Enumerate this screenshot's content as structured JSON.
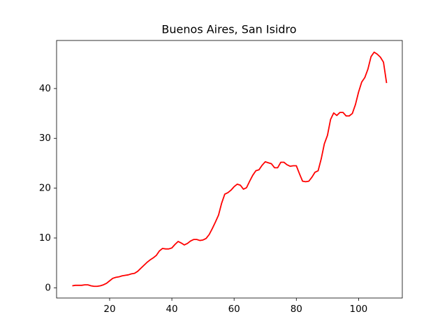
{
  "chart_data": {
    "type": "line",
    "title": "Buenos Aires, San Isidro",
    "x": [
      8,
      9,
      10,
      11,
      12,
      13,
      14,
      15,
      16,
      17,
      18,
      19,
      20,
      21,
      22,
      23,
      24,
      25,
      26,
      27,
      28,
      29,
      30,
      31,
      32,
      33,
      34,
      35,
      36,
      37,
      38,
      39,
      40,
      41,
      42,
      43,
      44,
      45,
      46,
      47,
      48,
      49,
      50,
      51,
      52,
      53,
      54,
      55,
      56,
      57,
      58,
      59,
      60,
      61,
      62,
      63,
      64,
      65,
      66,
      67,
      68,
      69,
      70,
      71,
      72,
      73,
      74,
      75,
      76,
      77,
      78,
      79,
      80,
      81,
      82,
      83,
      84,
      85,
      86,
      87,
      88,
      89,
      90,
      91,
      92,
      93,
      94,
      95,
      96,
      97,
      98,
      99,
      100,
      101,
      102,
      103,
      104,
      105,
      106,
      107,
      108,
      109
    ],
    "values": [
      0.4,
      0.5,
      0.5,
      0.5,
      0.6,
      0.6,
      0.4,
      0.3,
      0.3,
      0.4,
      0.6,
      0.9,
      1.4,
      1.9,
      2.1,
      2.2,
      2.4,
      2.5,
      2.6,
      2.8,
      2.9,
      3.3,
      3.9,
      4.5,
      5.1,
      5.6,
      6.0,
      6.5,
      7.4,
      7.9,
      7.8,
      7.8,
      8.0,
      8.7,
      9.3,
      9.0,
      8.6,
      8.9,
      9.4,
      9.7,
      9.7,
      9.5,
      9.6,
      9.9,
      10.7,
      11.9,
      13.2,
      14.6,
      17.0,
      18.8,
      19.1,
      19.6,
      20.3,
      20.8,
      20.6,
      19.8,
      20.1,
      21.4,
      22.6,
      23.5,
      23.7,
      24.6,
      25.3,
      25.1,
      24.9,
      24.1,
      24.1,
      25.2,
      25.2,
      24.7,
      24.4,
      24.5,
      24.5,
      22.9,
      21.4,
      21.3,
      21.4,
      22.2,
      23.2,
      23.5,
      25.9,
      28.9,
      30.6,
      33.8,
      35.1,
      34.6,
      35.2,
      35.2,
      34.5,
      34.5,
      35.0,
      36.8,
      39.3,
      41.3,
      42.2,
      43.9,
      46.4,
      47.3,
      46.9,
      46.3,
      45.3,
      41.1
    ],
    "color": "#ff0000",
    "xlim": [
      2.95,
      114.05
    ],
    "xticks": [
      20,
      40,
      60,
      80,
      100
    ],
    "ylim": [
      -2.05,
      49.65
    ],
    "yticks": [
      0,
      10,
      20,
      30,
      40
    ]
  }
}
